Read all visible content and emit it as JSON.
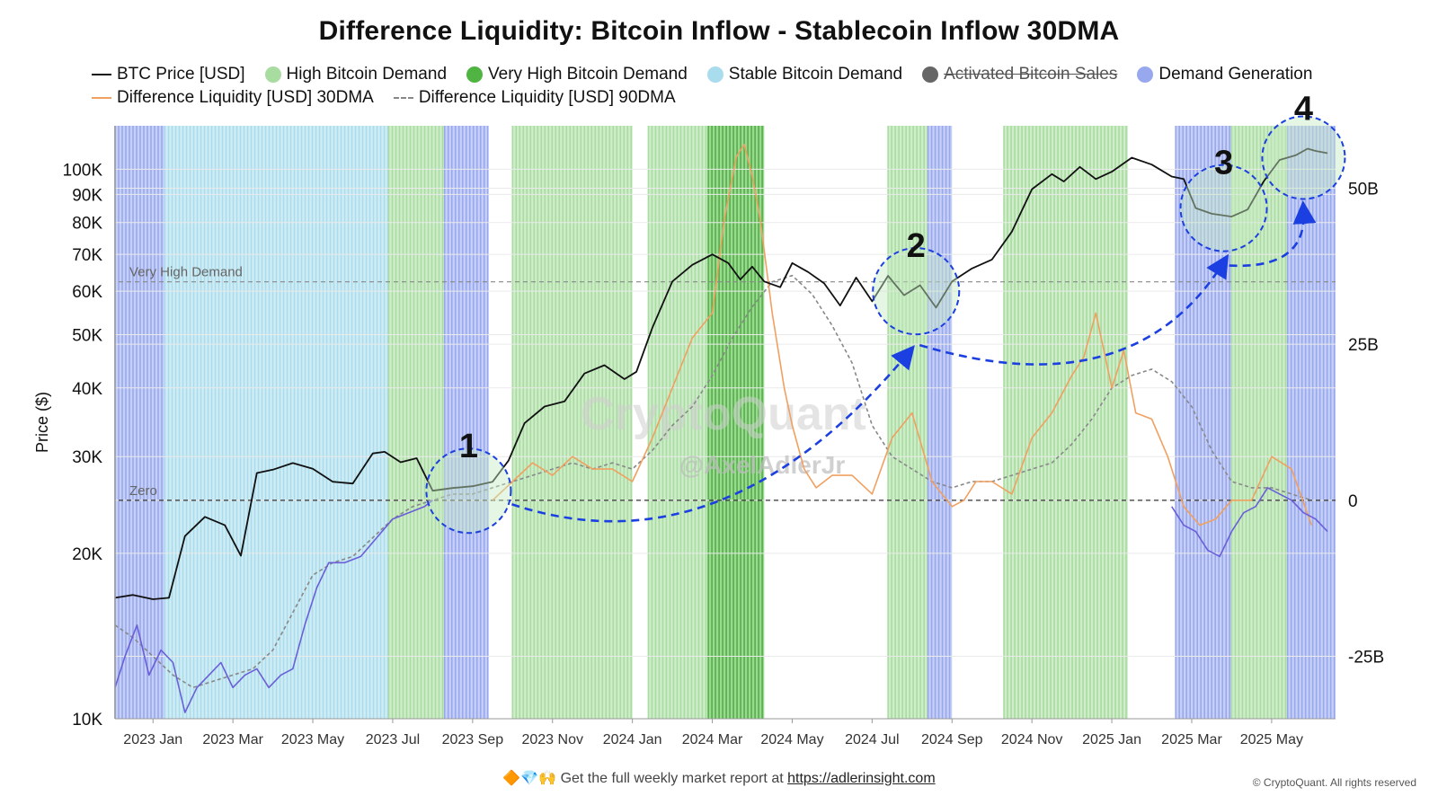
{
  "title": "Difference Liquidity: Bitcoin Inflow - Stablecoin Inflow 30DMA",
  "legend": [
    {
      "label": "BTC Price [USD]",
      "swatch": "line",
      "color": "#111111"
    },
    {
      "label": "High Bitcoin Demand",
      "swatch": "dot",
      "color": "#a8dca0"
    },
    {
      "label": "Very High Bitcoin Demand",
      "swatch": "dot",
      "color": "#4fb441"
    },
    {
      "label": "Stable Bitcoin Demand",
      "swatch": "dot",
      "color": "#a9dcec"
    },
    {
      "label": "Activated Bitcoin Sales",
      "swatch": "dot",
      "color": "#666666",
      "disabled": true
    },
    {
      "label": "Demand Generation",
      "swatch": "dot",
      "color": "#98a8ee"
    },
    {
      "label": "Difference Liquidity [USD] 30DMA",
      "swatch": "line",
      "color": "#f0a060"
    },
    {
      "label": "Difference Liquidity [USD] 90DMA",
      "swatch": "dash",
      "color": "#888888"
    }
  ],
  "chart_data": {
    "type": "line",
    "title": "Difference Liquidity: Bitcoin Inflow - Stablecoin Inflow 30DMA",
    "xlabel": "",
    "ylabel": "Price ($)",
    "y_scale": "log",
    "ylim": [
      10000,
      120000
    ],
    "y2lim": [
      -35,
      60
    ],
    "y_ticks": [
      "10K",
      "20K",
      "30K",
      "40K",
      "50K",
      "60K",
      "70K",
      "80K",
      "90K",
      "100K"
    ],
    "y_tick_values": [
      10000,
      20000,
      30000,
      40000,
      50000,
      60000,
      70000,
      80000,
      90000,
      100000
    ],
    "y2_ticks": [
      "-25B",
      "0",
      "25B",
      "50B"
    ],
    "y2_tick_values": [
      -25,
      0,
      25,
      50
    ],
    "x_ticks": [
      "2023 Jan",
      "2023 Mar",
      "2023 May",
      "2023 Jul",
      "2023 Sep",
      "2023 Nov",
      "2024 Jan",
      "2024 Mar",
      "2024 May",
      "2024 Jul",
      "2024 Sep",
      "2024 Nov",
      "2025 Jan",
      "2025 Mar",
      "2025 May"
    ],
    "x_tick_months": [
      1,
      3,
      5,
      7,
      9,
      11,
      13,
      15,
      17,
      19,
      21,
      23,
      25,
      27,
      29
    ],
    "x_range_months": [
      0.05,
      30.6
    ],
    "reference_lines": [
      {
        "label": "Very High Demand",
        "axis": "y2",
        "value": 35
      },
      {
        "label": "Zero",
        "axis": "y2",
        "value": 0
      }
    ],
    "series": [
      {
        "name": "BTC Price [USD]",
        "axis": "y",
        "color": "#111111",
        "x": [
          0.05,
          0.5,
          1.0,
          1.4,
          1.8,
          2.3,
          2.8,
          3.2,
          3.6,
          4.0,
          4.5,
          5.0,
          5.5,
          6.0,
          6.5,
          6.8,
          7.2,
          7.6,
          8.0,
          8.5,
          9.0,
          9.5,
          9.9,
          10.3,
          10.8,
          11.3,
          11.8,
          12.3,
          12.8,
          13.1,
          13.5,
          14.0,
          14.5,
          15.0,
          15.4,
          15.7,
          16.0,
          16.3,
          16.7,
          17.0,
          17.4,
          17.8,
          18.2,
          18.6,
          19.0,
          19.4,
          19.8,
          20.2,
          20.6,
          21.0,
          21.5,
          22.0,
          22.5,
          23.0,
          23.5,
          23.8,
          24.2,
          24.6,
          25.0,
          25.5,
          26.0,
          26.5,
          26.8,
          27.1,
          27.5,
          28.0,
          28.4,
          28.8,
          29.2,
          29.6,
          29.9,
          30.1,
          30.4
        ],
        "values": [
          16600,
          16800,
          16500,
          16600,
          21500,
          23300,
          22500,
          19800,
          28000,
          28400,
          29200,
          28500,
          27000,
          26800,
          30400,
          30600,
          29300,
          29800,
          26000,
          26300,
          26500,
          27000,
          29500,
          34500,
          37000,
          37800,
          42500,
          44000,
          41500,
          42800,
          51500,
          62500,
          67000,
          70000,
          67500,
          63000,
          66500,
          62500,
          61000,
          67500,
          65000,
          62000,
          56500,
          63500,
          57500,
          64000,
          59000,
          61500,
          56000,
          62500,
          66000,
          68500,
          77000,
          92000,
          98000,
          95000,
          101000,
          96000,
          99000,
          105000,
          102000,
          97000,
          96000,
          85000,
          83000,
          82000,
          84500,
          95000,
          104000,
          106000,
          109000,
          108000,
          107000
        ]
      },
      {
        "name": "Difference Liquidity [USD] 30DMA",
        "axis": "y2",
        "color": "#f0a060",
        "x": [
          9.5,
          10.0,
          10.5,
          11.0,
          11.5,
          12.0,
          12.5,
          13.0,
          13.5,
          14.0,
          14.5,
          15.0,
          15.3,
          15.6,
          15.8,
          16.0,
          16.2,
          16.5,
          16.8,
          17.0,
          17.3,
          17.6,
          18.0,
          18.5,
          19.0,
          19.5,
          20.0,
          20.5,
          21.0,
          21.3,
          21.6,
          22.0,
          22.5,
          23.0,
          23.5,
          24.0,
          24.3,
          24.6,
          25.0,
          25.3,
          25.6,
          26.0,
          26.4,
          26.8,
          27.2,
          27.6,
          28.0,
          28.5,
          29.0,
          29.5,
          30.0
        ],
        "values": [
          0,
          3,
          6,
          4,
          7,
          5,
          5,
          3,
          10,
          18,
          26,
          30,
          45,
          55,
          57,
          52,
          45,
          30,
          18,
          12,
          5,
          2,
          4,
          4,
          1,
          10,
          14,
          3,
          -1,
          0,
          3,
          3,
          1,
          10,
          14,
          20,
          23,
          30,
          18,
          24,
          14,
          13,
          7,
          -1,
          -4,
          -3,
          0,
          0,
          7,
          5,
          -4
        ]
      },
      {
        "name": "Difference Liquidity [USD] 90DMA",
        "axis": "y2",
        "color": "#888888",
        "x": [
          0.05,
          0.5,
          1.0,
          1.5,
          2.0,
          2.5,
          3.0,
          3.5,
          4.0,
          4.5,
          5.0,
          5.5,
          6.0,
          6.5,
          7.0,
          7.5,
          8.0,
          8.5,
          9.0,
          9.5,
          10.0,
          10.5,
          11.0,
          11.5,
          12.0,
          12.5,
          13.0,
          13.5,
          14.0,
          14.5,
          15.0,
          15.5,
          16.0,
          16.5,
          17.0,
          17.5,
          18.0,
          18.5,
          19.0,
          19.5,
          20.0,
          20.5,
          21.0,
          21.5,
          22.0,
          22.5,
          23.0,
          23.5,
          24.0,
          24.5,
          25.0,
          25.5,
          26.0,
          26.5,
          27.0,
          27.5,
          28.0,
          28.5,
          29.0,
          29.5,
          30.0
        ],
        "values": [
          -20,
          -22,
          -25,
          -28,
          -30,
          -29,
          -28,
          -27,
          -24,
          -18,
          -12,
          -10,
          -9,
          -6,
          -3,
          -1,
          0,
          1,
          1,
          2,
          3,
          4,
          5,
          6,
          5,
          6,
          5,
          8,
          12,
          15,
          20,
          26,
          31,
          35,
          36,
          33,
          28,
          22,
          12,
          7,
          5,
          3,
          2,
          3,
          3,
          4,
          5,
          6,
          9,
          13,
          18,
          20,
          21,
          19,
          15,
          8,
          3,
          2,
          2,
          1,
          0
        ]
      },
      {
        "name": "Demand Generation indicator",
        "axis": "y2",
        "color": "#6a5fd8",
        "x": [
          0.05,
          0.3,
          0.6,
          0.9,
          1.2,
          1.5,
          1.8,
          2.1,
          2.4,
          2.7,
          3.0,
          3.3,
          3.6,
          3.9,
          4.2,
          4.5,
          4.8,
          5.1,
          5.4,
          5.8,
          6.2,
          6.6,
          7.0,
          7.4,
          7.8,
          8.0
        ],
        "values": [
          -30,
          -25,
          -20,
          -28,
          -24,
          -26,
          -34,
          -30,
          -28,
          -26,
          -30,
          -28,
          -27,
          -30,
          -28,
          -27,
          -20,
          -14,
          -10,
          -10,
          -9,
          -6,
          -3,
          -2,
          -1,
          0
        ]
      },
      {
        "name": "Demand Generation indicator 2",
        "axis": "y2",
        "color": "#6a5fd8",
        "x": [
          26.5,
          26.8,
          27.1,
          27.4,
          27.7,
          28.0,
          28.3,
          28.6,
          28.9,
          29.2,
          29.5,
          29.8,
          30.1,
          30.4
        ],
        "values": [
          -1,
          -4,
          -5,
          -8,
          -9,
          -5,
          -2,
          -1,
          2,
          1,
          0,
          -2,
          -3,
          -5
        ]
      }
    ],
    "demand_regions": [
      {
        "name": "Demand Generation",
        "color": "#98a8ee",
        "start": 0.05,
        "end": 1.3
      },
      {
        "name": "Stable Bitcoin Demand",
        "color": "#a9dcec",
        "start": 1.3,
        "end": 6.9
      },
      {
        "name": "High Bitcoin Demand",
        "color": "#a8dca0",
        "start": 6.9,
        "end": 8.3
      },
      {
        "name": "Demand Generation",
        "color": "#98a8ee",
        "start": 8.3,
        "end": 9.4
      },
      {
        "name": "High Bitcoin Demand",
        "color": "#a8dca0",
        "start": 10.0,
        "end": 13.0
      },
      {
        "name": "High Bitcoin Demand",
        "color": "#a8dca0",
        "start": 13.4,
        "end": 14.9
      },
      {
        "name": "Very High Bitcoin Demand",
        "color": "#4fb441",
        "start": 14.9,
        "end": 16.3
      },
      {
        "name": "High Bitcoin Demand",
        "color": "#a8dca0",
        "start": 19.4,
        "end": 20.4
      },
      {
        "name": "Demand Generation",
        "color": "#98a8ee",
        "start": 20.4,
        "end": 21.0
      },
      {
        "name": "High Bitcoin Demand",
        "color": "#a8dca0",
        "start": 22.3,
        "end": 25.4
      },
      {
        "name": "Demand Generation",
        "color": "#98a8ee",
        "start": 26.6,
        "end": 28.0
      },
      {
        "name": "High Bitcoin Demand",
        "color": "#a8dca0",
        "start": 28.0,
        "end": 29.4
      },
      {
        "name": "Demand Generation",
        "color": "#98a8ee",
        "start": 29.4,
        "end": 30.6
      }
    ],
    "annotations": [
      {
        "label": "1",
        "month": 8.9,
        "price": 26000
      },
      {
        "label": "2",
        "month": 20.1,
        "price": 60000
      },
      {
        "label": "3",
        "month": 27.8,
        "price": 85000
      },
      {
        "label": "4",
        "month": 29.8,
        "price": 105000
      }
    ],
    "watermark": [
      "CryptoQuant",
      "@AxelAdlerJr"
    ]
  },
  "footer": {
    "emojis": "🔶💎🙌",
    "text": "Get the full weekly market report at",
    "link": "https://adlerinsight.com"
  },
  "copyright": "© CryptoQuant. All rights reserved"
}
